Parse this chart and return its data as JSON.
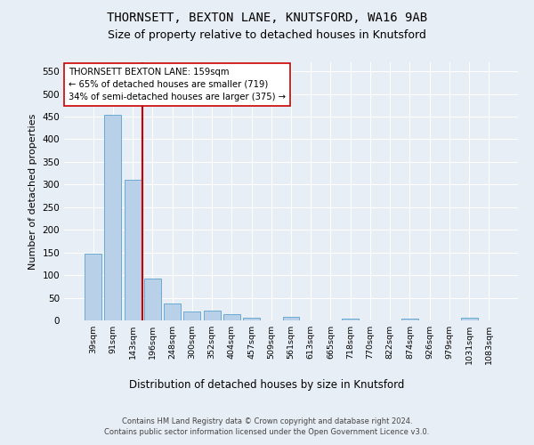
{
  "title1": "THORNSETT, BEXTON LANE, KNUTSFORD, WA16 9AB",
  "title2": "Size of property relative to detached houses in Knutsford",
  "xlabel": "Distribution of detached houses by size in Knutsford",
  "ylabel": "Number of detached properties",
  "footer": "Contains HM Land Registry data © Crown copyright and database right 2024.\nContains public sector information licensed under the Open Government Licence v3.0.",
  "bin_labels": [
    "39sqm",
    "91sqm",
    "143sqm",
    "196sqm",
    "248sqm",
    "300sqm",
    "352sqm",
    "404sqm",
    "457sqm",
    "509sqm",
    "561sqm",
    "613sqm",
    "665sqm",
    "718sqm",
    "770sqm",
    "822sqm",
    "874sqm",
    "926sqm",
    "979sqm",
    "1031sqm",
    "1083sqm"
  ],
  "bar_values": [
    148,
    455,
    311,
    93,
    38,
    20,
    21,
    13,
    5,
    0,
    7,
    0,
    0,
    4,
    0,
    0,
    4,
    0,
    0,
    5,
    0
  ],
  "bar_color": "#b8d0e8",
  "bar_edge_color": "#6aaad4",
  "vline_bin": 2,
  "vline_color": "#cc0000",
  "vline_label_property": "THORNSETT BEXTON LANE: 159sqm",
  "vline_label_smaller": "← 65% of detached houses are smaller (719)",
  "vline_label_larger": "34% of semi-detached houses are larger (375) →",
  "ylim": [
    0,
    570
  ],
  "yticks": [
    0,
    50,
    100,
    150,
    200,
    250,
    300,
    350,
    400,
    450,
    500,
    550
  ],
  "bg_color": "#e8eef5",
  "plot_bg_color": "#e8eef5",
  "title1_fontsize": 10,
  "title2_fontsize": 9
}
